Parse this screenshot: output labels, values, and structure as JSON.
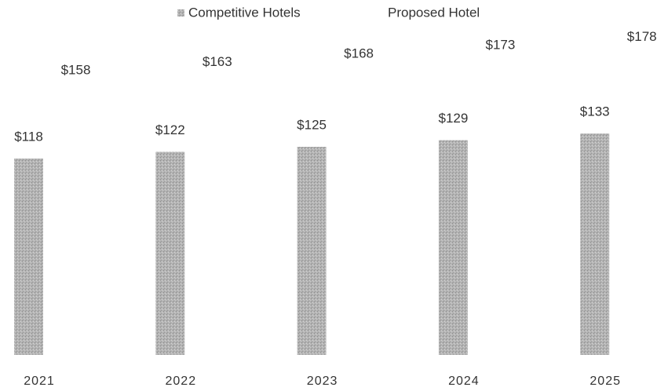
{
  "chart_data": {
    "type": "bar",
    "categories": [
      "2021",
      "2022",
      "2023",
      "2024",
      "2025"
    ],
    "series": [
      {
        "name": "Competitive Hotels",
        "color": "#b3b3b3",
        "values": [
          118,
          122,
          125,
          129,
          133
        ],
        "value_labels": [
          "$118",
          "$122",
          "$125",
          "$129",
          "$133"
        ]
      },
      {
        "name": "Proposed Hotel",
        "color": "#ffffff",
        "values": [
          158,
          163,
          168,
          173,
          178
        ],
        "value_labels": [
          "$158",
          "$163",
          "$168",
          "$173",
          "$178"
        ]
      }
    ],
    "legend": "top"
  }
}
